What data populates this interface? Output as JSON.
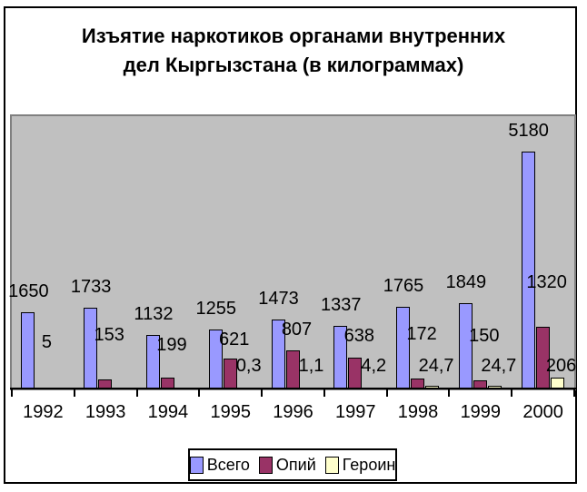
{
  "chart": {
    "title_lines": [
      "Изъятие наркотиков органами внутренних",
      "дел Кыргызстана (в килограммах)"
    ]
  },
  "chart_data": {
    "type": "bar",
    "title": "Изъятие наркотиков органами внутренних дел Кыргызстана (в килограммах)",
    "categories": [
      "1992",
      "1993",
      "1994",
      "1995",
      "1996",
      "1997",
      "1998",
      "1999",
      "2000"
    ],
    "series": [
      {
        "key": "total",
        "name": "Всего",
        "color": "#9999FF",
        "values": [
          1650,
          1733,
          1132,
          1255,
          1473,
          1337,
          1765,
          1849,
          5180
        ],
        "labels": [
          "1650",
          "1733",
          "1132",
          "1255",
          "1473",
          "1337",
          "1765",
          "1849",
          "5180"
        ]
      },
      {
        "key": "opium",
        "name": "Опий",
        "color": "#993366",
        "values": [
          5,
          153,
          199,
          621,
          807,
          638,
          172,
          150,
          1320
        ],
        "labels": [
          "5",
          "153",
          "199",
          "621",
          "807",
          "638",
          "172",
          "150",
          "1320"
        ]
      },
      {
        "key": "heroin",
        "name": "Героин",
        "color": "#FFFFCC",
        "values": [
          null,
          null,
          null,
          0.3,
          1.1,
          4.2,
          24.7,
          24.7,
          206
        ],
        "labels": [
          "",
          "",
          "",
          "0,3",
          "1,1",
          "4,2",
          "24,7",
          "24,7",
          "206"
        ]
      }
    ],
    "ylim": [
      0,
      6000
    ],
    "grid": false,
    "value_axis_visible": false,
    "legend_position": "bottom",
    "plot_background": "#C0C0C0"
  },
  "legend": {
    "items": [
      "Всего",
      "Опий",
      "Героин"
    ]
  }
}
